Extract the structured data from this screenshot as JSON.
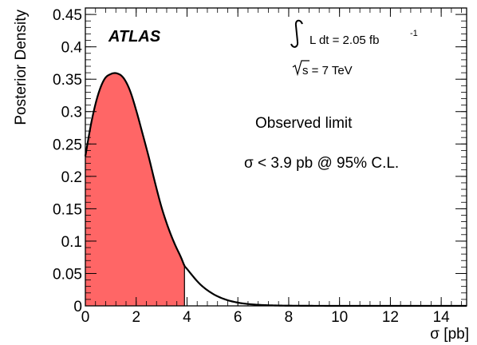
{
  "chart_data": {
    "type": "area",
    "xlabel": "σ [pb]",
    "ylabel": "Posterior Density",
    "xlim": [
      0,
      15
    ],
    "ylim": [
      0,
      0.46
    ],
    "x_ticks": [
      0,
      2,
      4,
      6,
      8,
      10,
      12,
      14
    ],
    "x_tick_labels": [
      "0",
      "2",
      "4",
      "6",
      "8",
      "10",
      "12",
      "14"
    ],
    "y_ticks": [
      0,
      0.05,
      0.1,
      0.15,
      0.2,
      0.25,
      0.3,
      0.35,
      0.4,
      0.45
    ],
    "y_tick_labels": [
      "0",
      "0.05",
      "0.1",
      "0.15",
      "0.2",
      "0.25",
      "0.3",
      "0.35",
      "0.4",
      "0.45"
    ],
    "grid": false,
    "series": [
      {
        "x": [
          0,
          0.25,
          0.5,
          0.75,
          1.0,
          1.25,
          1.5,
          1.75,
          2.0,
          2.25,
          2.5,
          2.75,
          3.0,
          3.25,
          3.5,
          3.75,
          3.9,
          4.0,
          4.5,
          5.0,
          5.5,
          6.0,
          6.5,
          7.0,
          7.5,
          8.0,
          9.0,
          10.0,
          12.0,
          15.0
        ],
        "y": [
          0.231,
          0.286,
          0.326,
          0.35,
          0.358,
          0.359,
          0.352,
          0.333,
          0.302,
          0.266,
          0.229,
          0.189,
          0.152,
          0.122,
          0.097,
          0.076,
          0.062,
          0.057,
          0.034,
          0.019,
          0.01,
          0.005,
          0.0025,
          0.0012,
          0.0006,
          0.0003,
          0.0001,
          0.0,
          0.0,
          0.0
        ]
      }
    ],
    "shaded_region": {
      "x_from": 0,
      "x_to": 3.9,
      "color": "#ff6666"
    },
    "line_color": "#000000",
    "annotations": {
      "experiment": "ATLAS",
      "luminosity_prefix": "L dt = 2.05 fb",
      "luminosity_exponent": "-1",
      "energy_value": "s = 7 TeV",
      "limit_title": "Observed limit",
      "limit_text": "σ < 3.9 pb @ 95% C.L."
    }
  }
}
